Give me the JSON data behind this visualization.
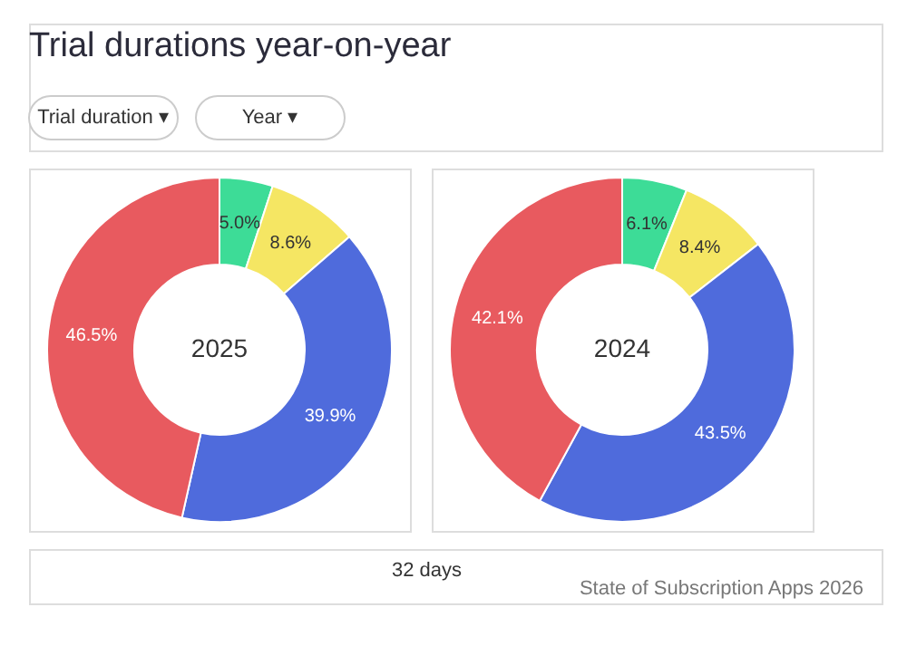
{
  "chart_data": [
    {
      "type": "other",
      "title": "Trial durations year-on-year",
      "annotations": [
        "Trial duration ▾",
        "Year ▾"
      ]
    },
    {
      "type": "donut",
      "title": "2025",
      "values": [
        5.0,
        8.6,
        39.9,
        46.5
      ],
      "value_labels": [
        "5.0%",
        "8.6%",
        "39.9%",
        "46.5%"
      ],
      "colors": [
        "#3ddc97",
        "#f5e663",
        "#4f6bdc",
        "#e85a5f"
      ],
      "legend": false
    },
    {
      "type": "donut",
      "title": "2024",
      "values": [
        6.1,
        8.4,
        43.5,
        42.1
      ],
      "value_labels": [
        "6.1%",
        "8.4%",
        "43.5%",
        "42.1%"
      ],
      "colors": [
        "#3ddc97",
        "#f5e663",
        "#4f6bdc",
        "#e85a5f"
      ],
      "legend": false
    },
    {
      "type": "other",
      "annotations": [
        "32 days",
        "State of Subscription Apps 2026"
      ]
    }
  ]
}
